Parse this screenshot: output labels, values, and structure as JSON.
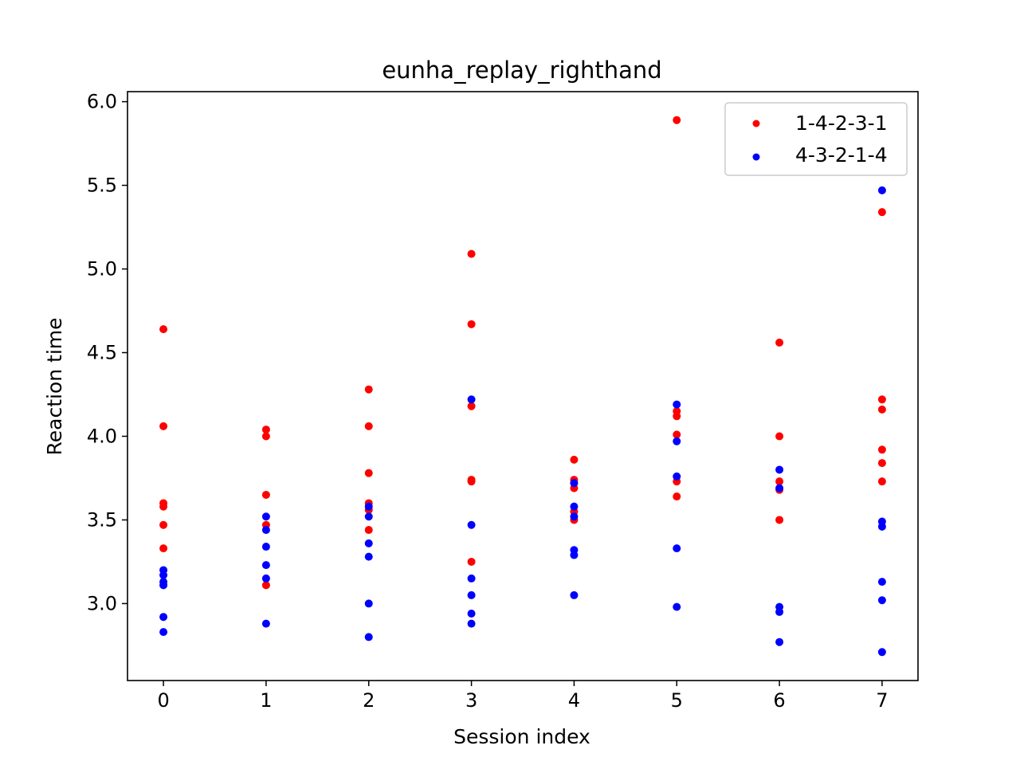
{
  "chart_data": {
    "type": "scatter",
    "title": "eunha_replay_righthand",
    "xlabel": "Session index",
    "ylabel": "Reaction time",
    "xlim": [
      -0.35,
      7.35
    ],
    "ylim": [
      2.54,
      6.06
    ],
    "x_ticks": [
      0,
      1,
      2,
      3,
      4,
      5,
      6,
      7
    ],
    "y_ticks": [
      3.0,
      3.5,
      4.0,
      4.5,
      5.0,
      5.5,
      6.0
    ],
    "grid": false,
    "legend_position": "top-right",
    "series": [
      {
        "name": "1-4-2-3-1",
        "color": "#ff0000",
        "points": [
          [
            0,
            4.64
          ],
          [
            0,
            4.06
          ],
          [
            0,
            3.6
          ],
          [
            0,
            3.58
          ],
          [
            0,
            3.47
          ],
          [
            0,
            3.33
          ],
          [
            1,
            4.04
          ],
          [
            1,
            4.0
          ],
          [
            1,
            3.65
          ],
          [
            1,
            3.47
          ],
          [
            1,
            3.11
          ],
          [
            2,
            4.28
          ],
          [
            2,
            4.06
          ],
          [
            2,
            3.78
          ],
          [
            2,
            3.6
          ],
          [
            2,
            3.56
          ],
          [
            2,
            3.44
          ],
          [
            3,
            5.09
          ],
          [
            3,
            4.67
          ],
          [
            3,
            4.18
          ],
          [
            3,
            3.74
          ],
          [
            3,
            3.73
          ],
          [
            3,
            3.25
          ],
          [
            4,
            3.86
          ],
          [
            4,
            3.74
          ],
          [
            4,
            3.69
          ],
          [
            4,
            3.55
          ],
          [
            4,
            3.5
          ],
          [
            5,
            5.89
          ],
          [
            5,
            4.15
          ],
          [
            5,
            4.12
          ],
          [
            5,
            4.01
          ],
          [
            5,
            3.73
          ],
          [
            5,
            3.64
          ],
          [
            6,
            4.56
          ],
          [
            6,
            4.0
          ],
          [
            6,
            3.73
          ],
          [
            6,
            3.68
          ],
          [
            6,
            3.5
          ],
          [
            7,
            5.34
          ],
          [
            7,
            4.22
          ],
          [
            7,
            4.16
          ],
          [
            7,
            3.92
          ],
          [
            7,
            3.84
          ],
          [
            7,
            3.73
          ]
        ]
      },
      {
        "name": "4-3-2-1-4",
        "color": "#0000ff",
        "points": [
          [
            0,
            3.2
          ],
          [
            0,
            3.17
          ],
          [
            0,
            3.13
          ],
          [
            0,
            3.11
          ],
          [
            0,
            2.92
          ],
          [
            0,
            2.83
          ],
          [
            1,
            3.52
          ],
          [
            1,
            3.44
          ],
          [
            1,
            3.34
          ],
          [
            1,
            3.23
          ],
          [
            1,
            3.15
          ],
          [
            1,
            2.88
          ],
          [
            2,
            3.58
          ],
          [
            2,
            3.52
          ],
          [
            2,
            3.36
          ],
          [
            2,
            3.28
          ],
          [
            2,
            3.0
          ],
          [
            2,
            2.8
          ],
          [
            3,
            4.22
          ],
          [
            3,
            3.47
          ],
          [
            3,
            3.15
          ],
          [
            3,
            3.05
          ],
          [
            3,
            2.94
          ],
          [
            3,
            2.88
          ],
          [
            4,
            3.72
          ],
          [
            4,
            3.58
          ],
          [
            4,
            3.52
          ],
          [
            4,
            3.32
          ],
          [
            4,
            3.29
          ],
          [
            4,
            3.05
          ],
          [
            5,
            4.19
          ],
          [
            5,
            3.97
          ],
          [
            5,
            3.76
          ],
          [
            5,
            3.33
          ],
          [
            5,
            2.98
          ],
          [
            6,
            3.8
          ],
          [
            6,
            3.69
          ],
          [
            6,
            2.98
          ],
          [
            6,
            2.95
          ],
          [
            6,
            2.77
          ],
          [
            7,
            5.47
          ],
          [
            7,
            3.49
          ],
          [
            7,
            3.46
          ],
          [
            7,
            3.13
          ],
          [
            7,
            3.02
          ],
          [
            7,
            2.71
          ]
        ]
      }
    ]
  }
}
